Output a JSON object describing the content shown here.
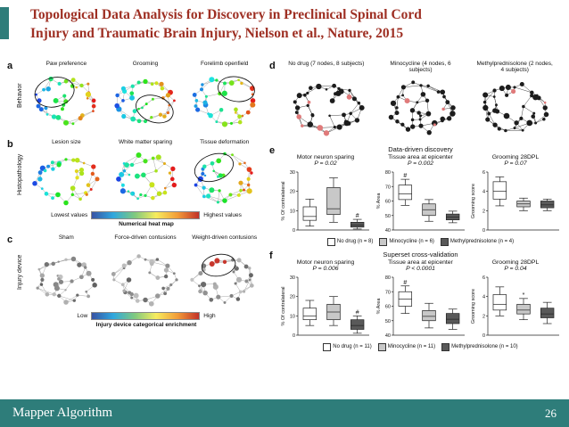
{
  "slide": {
    "title_line1": "Topological Data Analysis for Discovery in Preclinical Spinal Cord",
    "title_line2": "Injury and Traumatic Brain Injury, Nielson et al., Nature, 2015",
    "footer_left": "Mapper Algorithm",
    "page_number": "26",
    "accent_color": "#2E7D7A",
    "title_color": "#9E2F23"
  },
  "figure": {
    "heatmap_colors": [
      "#3953a4",
      "#2fa7de",
      "#7fc97f",
      "#f7ec5e",
      "#f29c38",
      "#c23128"
    ],
    "panel_a": {
      "label": "a",
      "row_label": "Behavior",
      "items": [
        "Paw preference",
        "Grooming",
        "Forelimb openfield"
      ]
    },
    "panel_b": {
      "label": "b",
      "row_label": "Histopathology",
      "items": [
        "Lesion size",
        "White matter sparing",
        "Tissue deformation"
      ],
      "colorbar": {
        "left": "Lowest values",
        "right": "Highest values",
        "caption": "Numerical heat map"
      }
    },
    "panel_c": {
      "label": "c",
      "row_label": "Injury device",
      "items": [
        "Sham",
        "Force-driven contusions",
        "Weight-driven contusions"
      ],
      "colorbar": {
        "left": "Low",
        "right": "High",
        "caption": "Injury device categorical enrichment"
      }
    },
    "panel_d": {
      "label": "d",
      "items": [
        "No drug (7 nodes, 8 subjects)",
        "Minocycline (4 nodes, 6 subjects)",
        "Methylprednisolone (2 nodes, 4 subjects)"
      ]
    },
    "panel_e": {
      "label": "e",
      "heading": "Data-driven discovery",
      "legend": [
        "No drug (n = 8)",
        "Minocycline (n = 6)",
        "Methylprednisolone (n = 4)"
      ]
    },
    "panel_f": {
      "label": "f",
      "heading": "Superset cross-validation",
      "legend": [
        "No drug (n = 11)",
        "Minocycline (n = 11)",
        "Methylprednisolone (n = 10)"
      ]
    }
  },
  "chart_colors": {
    "no_drug": "#ffffff",
    "minocycline": "#c8c8c8",
    "methylprednisolone": "#595959"
  },
  "chart_data": [
    {
      "type": "box",
      "panel": "e",
      "title": "Motor neuron sparing",
      "p_label": "P = 0.02",
      "ylabel": "% Of contralateral",
      "ylim": [
        0,
        30
      ],
      "yticks": [
        0,
        10,
        20,
        30
      ],
      "groups": [
        {
          "name": "No drug",
          "color": "#ffffff",
          "lo": 2,
          "q1": 5,
          "med": 7,
          "q3": 12,
          "hi": 16
        },
        {
          "name": "Minocycline",
          "color": "#c8c8c8",
          "lo": 4,
          "q1": 8,
          "med": 11,
          "q3": 22,
          "hi": 27
        },
        {
          "name": "Methylprednisolone",
          "color": "#595959",
          "lo": 0.5,
          "q1": 1.5,
          "med": 2.5,
          "q3": 4,
          "hi": 5.5,
          "annotation": "#"
        }
      ]
    },
    {
      "type": "box",
      "panel": "e",
      "title": "Tissue area at epicenter",
      "p_label": "P = 0.002",
      "ylabel": "% Area",
      "ylim": [
        40,
        80
      ],
      "yticks": [
        40,
        50,
        60,
        70,
        80
      ],
      "groups": [
        {
          "name": "No drug",
          "color": "#ffffff",
          "lo": 57,
          "q1": 61,
          "med": 65,
          "q3": 71,
          "hi": 75,
          "annotation": "#"
        },
        {
          "name": "Minocycline",
          "color": "#c8c8c8",
          "lo": 46,
          "q1": 50,
          "med": 54,
          "q3": 58,
          "hi": 61
        },
        {
          "name": "Methylprednisolone",
          "color": "#595959",
          "lo": 45,
          "q1": 47,
          "med": 49,
          "q3": 51,
          "hi": 53
        }
      ]
    },
    {
      "type": "box",
      "panel": "e",
      "title": "Grooming 28DPL",
      "p_label": "P = 0.07",
      "ylabel": "Grooming score",
      "ylim": [
        0,
        6
      ],
      "yticks": [
        0,
        2,
        4,
        6
      ],
      "groups": [
        {
          "name": "No drug",
          "color": "#ffffff",
          "lo": 2.5,
          "q1": 3.2,
          "med": 4,
          "q3": 5,
          "hi": 5.5
        },
        {
          "name": "Minocycline",
          "color": "#c8c8c8",
          "lo": 2,
          "q1": 2.4,
          "med": 2.7,
          "q3": 3,
          "hi": 3.3
        },
        {
          "name": "Methylprednisolone",
          "color": "#595959",
          "lo": 2,
          "q1": 2.3,
          "med": 2.6,
          "q3": 3,
          "hi": 3.2
        }
      ]
    },
    {
      "type": "box",
      "panel": "f",
      "title": "Motor neuron sparing",
      "p_label": "P = 0.006",
      "ylabel": "% Of contralateral",
      "ylim": [
        0,
        30
      ],
      "yticks": [
        0,
        10,
        20,
        30
      ],
      "groups": [
        {
          "name": "No drug",
          "color": "#ffffff",
          "lo": 5,
          "q1": 8,
          "med": 10,
          "q3": 14,
          "hi": 18
        },
        {
          "name": "Minocycline",
          "color": "#c8c8c8",
          "lo": 5,
          "q1": 8,
          "med": 12,
          "q3": 16,
          "hi": 20
        },
        {
          "name": "Methylprednisolone",
          "color": "#595959",
          "lo": 1,
          "q1": 3,
          "med": 5,
          "q3": 8,
          "hi": 10,
          "annotation": "#"
        }
      ]
    },
    {
      "type": "box",
      "panel": "f",
      "title": "Tissue area at epicenter",
      "p_label": "P < 0.0001",
      "ylabel": "% Area",
      "ylim": [
        40,
        80
      ],
      "yticks": [
        40,
        50,
        60,
        70,
        80
      ],
      "groups": [
        {
          "name": "No drug",
          "color": "#ffffff",
          "lo": 55,
          "q1": 60,
          "med": 65,
          "q3": 70,
          "hi": 74,
          "annotation": "#"
        },
        {
          "name": "Minocycline",
          "color": "#c8c8c8",
          "lo": 45,
          "q1": 50,
          "med": 53,
          "q3": 57,
          "hi": 62
        },
        {
          "name": "Methylprednisolone",
          "color": "#595959",
          "lo": 44,
          "q1": 48,
          "med": 51,
          "q3": 55,
          "hi": 58
        }
      ]
    },
    {
      "type": "box",
      "panel": "f",
      "title": "Grooming 28DPL",
      "p_label": "P = 0.04",
      "ylabel": "Grooming score",
      "ylim": [
        0,
        6
      ],
      "yticks": [
        0,
        2,
        4,
        6
      ],
      "groups": [
        {
          "name": "No drug",
          "color": "#ffffff",
          "lo": 2,
          "q1": 2.6,
          "med": 3.2,
          "q3": 4.2,
          "hi": 5
        },
        {
          "name": "Minocycline",
          "color": "#c8c8c8",
          "lo": 1.6,
          "q1": 2.2,
          "med": 2.6,
          "q3": 3.2,
          "hi": 3.8,
          "annotation": "*"
        },
        {
          "name": "Methylprednisolone",
          "color": "#595959",
          "lo": 1.2,
          "q1": 1.8,
          "med": 2.2,
          "q3": 2.8,
          "hi": 3.4
        }
      ]
    }
  ]
}
